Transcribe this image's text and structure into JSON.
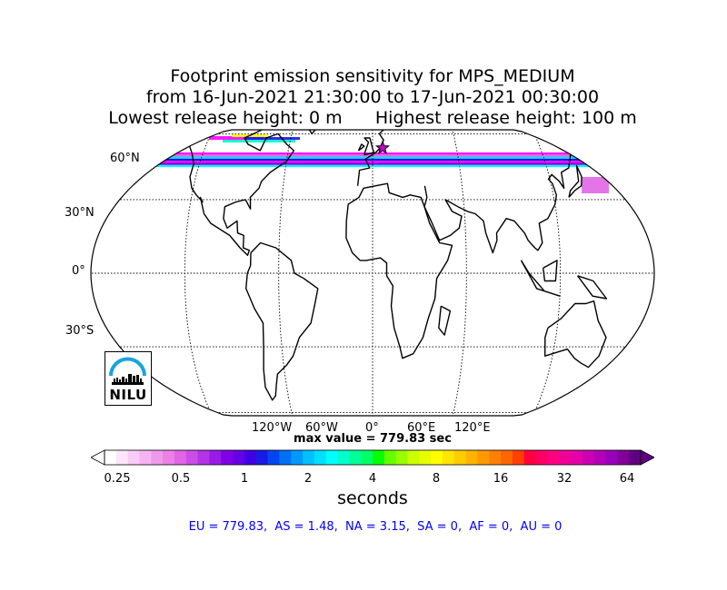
{
  "title": {
    "line1": "Footprint emission sensitivity for MPS_MEDIUM",
    "line2": "from 16-Jun-2021 21:30:00 to 17-Jun-2021 00:30:00",
    "line3": "Lowest release height: 0 m      Highest release height: 100 m"
  },
  "map": {
    "projection": "Robinson",
    "lat_labels": [
      "60°N",
      "30°N",
      "0°",
      "30°S"
    ],
    "lon_labels": [
      "120°W",
      "60°W",
      "0°",
      "60°E",
      "120°E"
    ],
    "release_marker": "star",
    "release_marker_color": "#cc00cc"
  },
  "max_value": "max value = 779.83 sec",
  "colorbar": {
    "ticks": [
      "0.25",
      "0.5",
      "1",
      "2",
      "4",
      "8",
      "16",
      "32",
      "64"
    ],
    "label": "seconds",
    "colors": [
      "#ffffff",
      "#fde6fb",
      "#f9ccf6",
      "#f5b3f1",
      "#f099ec",
      "#eb80e6",
      "#e066e6",
      "#cc4de6",
      "#b333e6",
      "#9a1ae6",
      "#8000e6",
      "#6600e6",
      "#4000e6",
      "#1a1ae6",
      "#0047f0",
      "#0070f5",
      "#0099fa",
      "#00bfff",
      "#00e0ff",
      "#00ffff",
      "#00ffcc",
      "#00ff99",
      "#00ff66",
      "#00ff00",
      "#66ff00",
      "#99ff00",
      "#ccff00",
      "#e6ff00",
      "#ffff00",
      "#ffe600",
      "#ffcc00",
      "#ffb300",
      "#ff9900",
      "#ff8000",
      "#ff6600",
      "#ff4000",
      "#ff0040",
      "#ff0066",
      "#ff0080",
      "#f00099",
      "#e600a8",
      "#cc00b3",
      "#b300b8",
      "#9900bb",
      "#800099",
      "#600080"
    ]
  },
  "summary": "EU = 779.83,  AS = 1.48,  NA = 3.15,  SA = 0,  AF = 0,  AU = 0",
  "logo": {
    "text": "NILU",
    "arc_color": "#1aa3e0"
  }
}
